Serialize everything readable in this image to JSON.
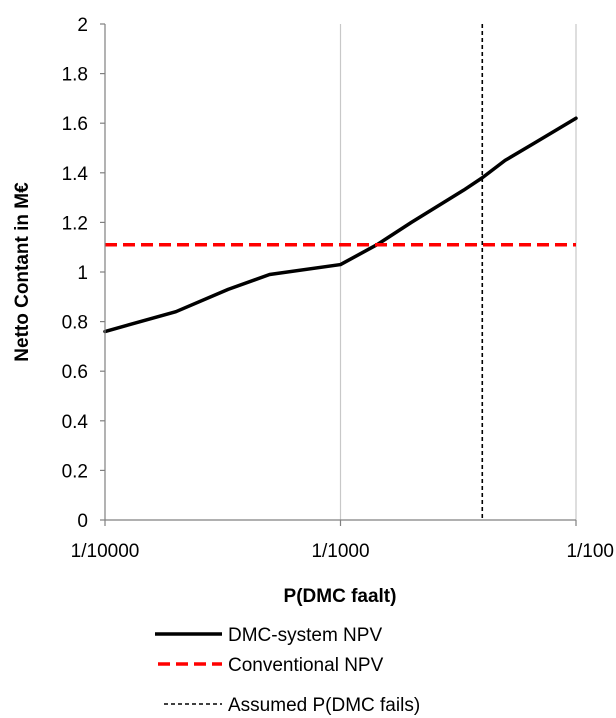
{
  "chart_data": {
    "type": "line",
    "xlabel": "P(DMC faalt)",
    "ylabel": "Netto Contant in M€",
    "x_scale": "log",
    "xlim": [
      "1/10000",
      "1/100"
    ],
    "x_ticks": [
      "1/10000",
      "1/1000",
      "1/100"
    ],
    "ylim": [
      0,
      2
    ],
    "y_ticks": [
      "0",
      "0.2",
      "0.4",
      "0.6",
      "0.8",
      "1",
      "1.2",
      "1.4",
      "1.6",
      "1.8",
      "2"
    ],
    "grid": "vertical major only",
    "legend_position": "bottom",
    "series": [
      {
        "name": "DMC-system NPV",
        "color": "#000000",
        "style": "solid",
        "points": [
          {
            "x": "1/10000",
            "y": 0.76
          },
          {
            "x": "1/5000",
            "y": 0.84
          },
          {
            "x": "1/3000",
            "y": 0.93
          },
          {
            "x": "1/2000",
            "y": 0.99
          },
          {
            "x": "1/1000",
            "y": 1.03
          },
          {
            "x": "1/700",
            "y": 1.11
          },
          {
            "x": "1/500",
            "y": 1.2
          },
          {
            "x": "1/300",
            "y": 1.33
          },
          {
            "x": "1/250",
            "y": 1.38
          },
          {
            "x": "1/200",
            "y": 1.45
          },
          {
            "x": "1/150",
            "y": 1.52
          },
          {
            "x": "1/100",
            "y": 1.62
          }
        ]
      },
      {
        "name": "Conventional NPV",
        "color": "#ff0000",
        "style": "dashed",
        "points": [
          {
            "x": "1/10000",
            "y": 1.11
          },
          {
            "x": "1/100",
            "y": 1.11
          }
        ]
      },
      {
        "name": "Assumed P(DMC fails)",
        "color": "#000000",
        "style": "dotted-vertical",
        "x": "1/250"
      }
    ]
  }
}
